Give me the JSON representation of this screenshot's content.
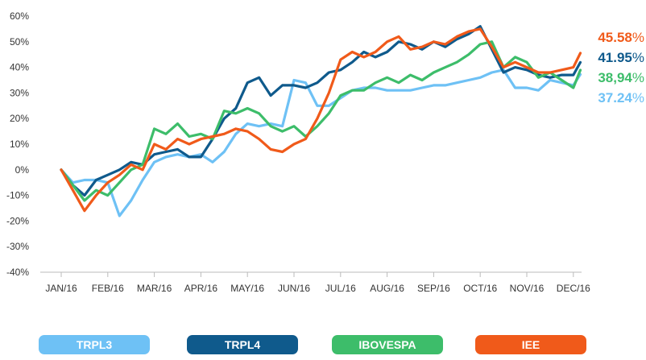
{
  "chart_data": {
    "type": "line",
    "title": "",
    "xlabel": "",
    "ylabel": "",
    "ylim": [
      -40,
      60
    ],
    "y_ticks": [
      "60%",
      "50%",
      "40%",
      "30%",
      "20%",
      "10%",
      "0%",
      "-10%",
      "-20%",
      "-30%",
      "-40%"
    ],
    "categories": [
      "JAN/16",
      "FEB/16",
      "MAR/16",
      "APR/16",
      "MAY/16",
      "JUN/16",
      "JUL/16",
      "AUG/16",
      "SEP/16",
      "OCT/16",
      "NOV/16",
      "DEC/16"
    ],
    "x": [
      0,
      0.25,
      0.5,
      0.75,
      1,
      1.25,
      1.5,
      1.75,
      2,
      2.25,
      2.5,
      2.75,
      3,
      3.25,
      3.5,
      3.75,
      4,
      4.25,
      4.5,
      4.75,
      5,
      5.25,
      5.5,
      5.75,
      6,
      6.25,
      6.5,
      6.75,
      7,
      7.25,
      7.5,
      7.75,
      8,
      8.25,
      8.5,
      8.75,
      9,
      9.25,
      9.5,
      9.75,
      10,
      10.25,
      10.5,
      10.75,
      11,
      11.15
    ],
    "grid": false,
    "legend_position": "bottom",
    "series": [
      {
        "name": "TRPL3",
        "color": "#6ec1f5",
        "end_value": "37.24",
        "end_unit": "%",
        "values": [
          0,
          -5,
          -4,
          -4,
          -5,
          -18,
          -12,
          -4,
          3,
          5,
          6,
          5,
          6,
          3,
          7,
          14,
          18,
          17,
          18,
          17,
          35,
          34,
          25,
          25,
          28,
          31,
          32,
          32,
          31,
          31,
          31,
          32,
          33,
          33,
          34,
          35,
          36,
          38,
          39,
          32,
          32,
          31,
          35,
          34,
          33,
          37.24
        ]
      },
      {
        "name": "TRPL4",
        "color": "#0f5a8c",
        "end_value": "41.95",
        "end_unit": "%",
        "values": [
          0,
          -6,
          -10,
          -4,
          -2,
          0,
          3,
          2,
          6,
          7,
          8,
          5,
          5,
          12,
          20,
          24,
          34,
          36,
          29,
          33,
          33,
          32,
          34,
          38,
          39,
          42,
          46,
          44,
          46,
          50,
          49,
          47,
          50,
          48,
          51,
          53,
          56,
          47,
          38,
          40,
          39,
          37,
          36,
          37,
          37,
          41.95
        ]
      },
      {
        "name": "IBOVESPA",
        "color": "#3dbd6a",
        "end_value": "38,94",
        "end_unit": "%",
        "values": [
          0,
          -6,
          -12,
          -8,
          -10,
          -5,
          0,
          2,
          16,
          14,
          18,
          13,
          14,
          12,
          23,
          22,
          24,
          22,
          17,
          15,
          17,
          13,
          17,
          22,
          29,
          31,
          31,
          34,
          36,
          34,
          37,
          35,
          38,
          40,
          42,
          45,
          49,
          50,
          40,
          44,
          42,
          36,
          38,
          35,
          32,
          38.94
        ]
      },
      {
        "name": "IEE",
        "color": "#f05a1a",
        "end_value": "45.58",
        "end_unit": "%",
        "values": [
          0,
          -8,
          -16,
          -10,
          -5,
          -2,
          2,
          0,
          10,
          8,
          12,
          10,
          12,
          13,
          14,
          16,
          15,
          12,
          8,
          7,
          10,
          12,
          20,
          30,
          43,
          46,
          44,
          46,
          50,
          52,
          47,
          48,
          50,
          49,
          52,
          54,
          55,
          48,
          40,
          42,
          40,
          38,
          38,
          39,
          40,
          45.58
        ]
      }
    ]
  }
}
